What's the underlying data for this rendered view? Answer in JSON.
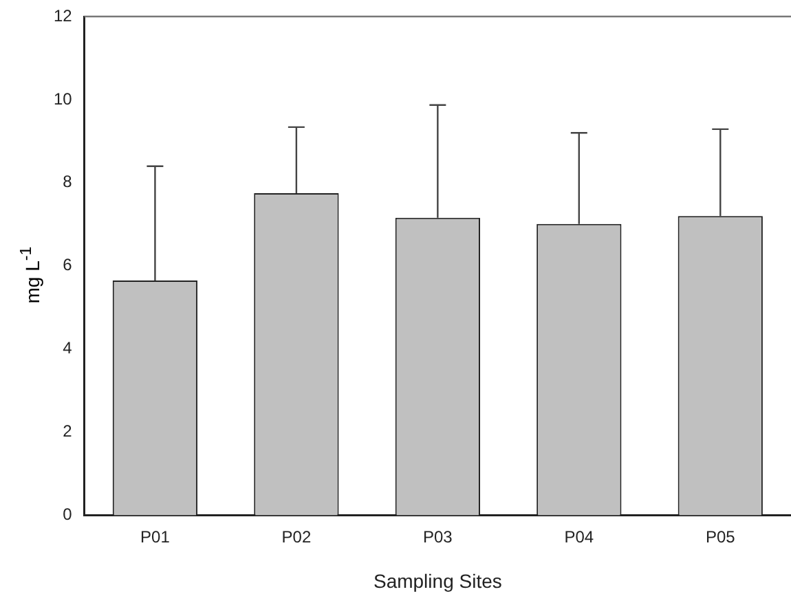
{
  "chart_data": {
    "type": "bar",
    "xlabel": "Sampling Sites",
    "ylabel": "mg L$^{-1}$",
    "categories": [
      "P01",
      "P02",
      "P03",
      "P04",
      "P05"
    ],
    "values": [
      5.65,
      7.75,
      7.16,
      7.01,
      7.2
    ],
    "errors": [
      [
        5.65,
        8.4
      ],
      [
        7.75,
        9.34
      ],
      [
        7.16,
        9.87
      ],
      [
        7.01,
        9.2
      ],
      [
        7.2,
        9.29
      ]
    ],
    "color": "#c0c0c0",
    "ylim": [
      0,
      12
    ],
    "yticks": [
      0,
      2,
      4,
      6,
      8,
      10,
      12
    ],
    "grid": false,
    "legend": false
  }
}
